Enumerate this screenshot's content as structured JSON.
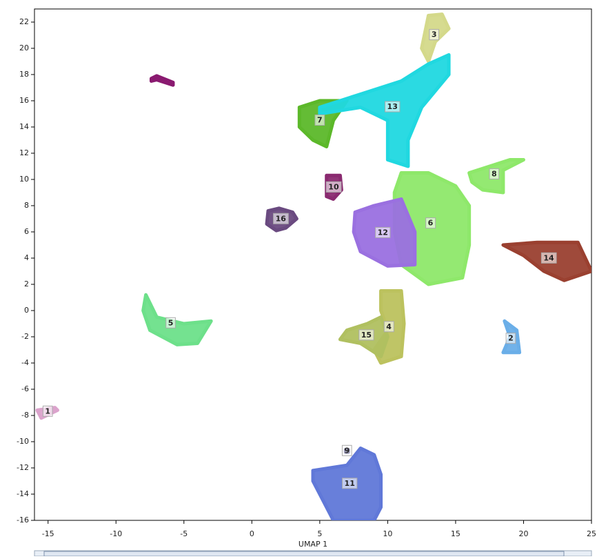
{
  "chart_data": {
    "type": "scatter",
    "x_label": "UMAP 1",
    "xlim": [
      -16,
      25
    ],
    "xticks": [
      -15,
      -10,
      -5,
      0,
      5,
      10,
      15,
      20,
      25
    ],
    "ylim": [
      -16,
      23
    ],
    "yticks": [
      -16,
      -14,
      -12,
      -10,
      -8,
      -6,
      -4,
      -2,
      0,
      2,
      4,
      6,
      8,
      10,
      12,
      14,
      16,
      18,
      20,
      22
    ],
    "series": [
      {
        "name": "1",
        "color": "#dba3cc",
        "x": [
          -15.8,
          -14.5,
          -14.3,
          -15.5
        ],
        "y": [
          -7.6,
          -7.4,
          -7.6,
          -8.2
        ]
      },
      {
        "name": "2",
        "color": "#6aaee8",
        "x": [
          18.6,
          19.5,
          19.7,
          18.5,
          19.0
        ],
        "y": [
          -0.8,
          -1.5,
          -3.2,
          -3.2,
          -2.0
        ]
      },
      {
        "name": "3",
        "color": "#d4d98a",
        "x": [
          12.5,
          13.0,
          14.0,
          14.5,
          13.5,
          13.0
        ],
        "y": [
          20.0,
          22.5,
          22.6,
          21.5,
          20.5,
          19.0
        ]
      },
      {
        "name": "4",
        "color": "#bcc25e",
        "x": [
          9.5,
          11.0,
          11.2,
          11.0,
          9.5,
          9.0,
          10.0,
          9.5
        ],
        "y": [
          1.5,
          1.5,
          -1.0,
          -3.5,
          -4.0,
          -3.0,
          -1.5,
          0.0
        ]
      },
      {
        "name": "5",
        "color": "#6de08a",
        "x": [
          -7.8,
          -7.0,
          -5.0,
          -3.0,
          -4.0,
          -5.5,
          -7.5,
          -8.0
        ],
        "y": [
          1.2,
          -0.5,
          -1.0,
          -0.8,
          -2.5,
          -2.6,
          -1.5,
          0.0
        ]
      },
      {
        "name": "6",
        "color": "#8ee86a",
        "x": [
          11.0,
          13.0,
          15.0,
          16.0,
          16.0,
          15.5,
          13.0,
          11.0,
          10.5,
          10.5
        ],
        "y": [
          10.5,
          10.5,
          9.5,
          8.0,
          5.0,
          2.5,
          2.0,
          3.5,
          6.0,
          9.0
        ]
      },
      {
        "name": "7",
        "color": "#5cb82a",
        "x": [
          3.5,
          5.0,
          7.0,
          6.0,
          5.5,
          4.5,
          3.5
        ],
        "y": [
          15.5,
          16.0,
          16.0,
          14.5,
          12.5,
          13.0,
          14.0
        ]
      },
      {
        "name": "8",
        "color": "#8ee86a",
        "x": [
          16.0,
          17.5,
          19.0,
          20.0,
          18.5,
          18.5,
          17.0,
          16.2
        ],
        "y": [
          10.5,
          11.0,
          11.5,
          11.5,
          10.7,
          9.0,
          9.2,
          9.8
        ]
      },
      {
        "name": "9",
        "color": "#1a1a60",
        "x": [
          6.9,
          7.1,
          7.1,
          6.9
        ],
        "y": [
          -10.6,
          -10.6,
          -10.8,
          -10.8
        ]
      },
      {
        "name": "10",
        "color": "#8a2a70",
        "x": [
          5.5,
          6.5,
          6.6,
          6.0,
          5.5
        ],
        "y": [
          10.3,
          10.3,
          9.2,
          8.5,
          8.7
        ]
      },
      {
        "name": "11",
        "color": "#6078d8",
        "x": [
          4.5,
          7.0,
          8.0,
          9.0,
          9.5,
          9.5,
          9.0,
          6.0,
          5.0,
          4.5
        ],
        "y": [
          -12.2,
          -11.8,
          -10.5,
          -11.0,
          -12.5,
          -15.0,
          -16.0,
          -16.0,
          -14.0,
          -13.0
        ]
      },
      {
        "name": "12",
        "color": "#9a70e0",
        "x": [
          7.6,
          9.0,
          11.0,
          12.0,
          12.0,
          10.0,
          8.0,
          7.5
        ],
        "y": [
          7.5,
          8.0,
          8.5,
          6.0,
          3.5,
          3.4,
          4.5,
          6.0
        ]
      },
      {
        "name": "13",
        "color": "#20d8e0",
        "x": [
          5.0,
          8.0,
          11.0,
          13.0,
          14.5,
          14.5,
          12.5,
          11.5,
          11.5,
          10.0,
          10.0,
          8.0,
          5.0
        ],
        "y": [
          15.5,
          16.5,
          17.5,
          18.8,
          19.5,
          18.0,
          15.5,
          13.0,
          11.0,
          11.5,
          14.5,
          15.5,
          15.0
        ]
      },
      {
        "name": "14",
        "color": "#9a4030",
        "x": [
          18.5,
          21.0,
          24.0,
          25.0,
          23.0,
          21.5,
          20.0
        ],
        "y": [
          5.0,
          5.2,
          5.2,
          3.0,
          2.3,
          3.0,
          4.2
        ]
      },
      {
        "name": "15",
        "color": "#b0c060",
        "x": [
          7.0,
          8.5,
          9.5,
          10.0,
          9.5,
          8.0,
          6.5
        ],
        "y": [
          -1.5,
          -1.0,
          -0.5,
          -2.0,
          -3.5,
          -2.5,
          -2.2
        ]
      },
      {
        "name": "16",
        "color": "#6a4a80",
        "x": [
          1.2,
          2.0,
          3.0,
          3.3,
          2.5,
          1.8,
          1.1
        ],
        "y": [
          7.6,
          7.8,
          7.5,
          7.0,
          6.3,
          6.1,
          6.6
        ]
      },
      {
        "color": "#8a1a70",
        "x": [
          -7.4,
          -7.0,
          -5.8,
          -5.8,
          -7.0,
          -7.4
        ],
        "y": [
          17.7,
          17.9,
          17.4,
          17.2,
          17.6,
          17.5
        ]
      }
    ]
  }
}
